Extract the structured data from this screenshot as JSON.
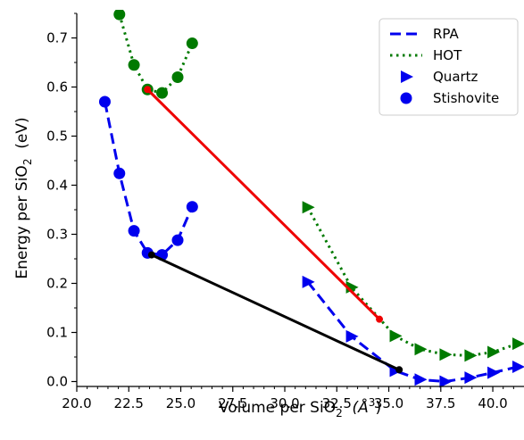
{
  "chart_data": {
    "type": "line",
    "xlabel": "Volume per SiO",
    "xlabel_sub": "2",
    "xlabel_unit": "(Å",
    "xlabel_unit_sup": "3",
    "xlabel_unit_close": ")",
    "ylabel": "Energy per SiO",
    "ylabel_sub": "2",
    "ylabel_unit": "(eV)",
    "xlim": [
      20.0,
      41.5
    ],
    "ylim": [
      -0.01,
      0.75
    ],
    "x_ticks": [
      "20.0",
      "22.5",
      "25.0",
      "27.5",
      "30.0",
      "32.5",
      "35.0",
      "37.5",
      "40.0"
    ],
    "y_ticks": [
      "0.0",
      "0.1",
      "0.2",
      "0.3",
      "0.4",
      "0.5",
      "0.6",
      "0.7"
    ],
    "legend": {
      "placement": "top-right",
      "entries": [
        "RPA",
        "HOT",
        "Quartz",
        "Stishovite"
      ]
    },
    "series": [
      {
        "name": "RPA",
        "curve": "dashed",
        "color": "#0000ee",
        "segments": [
          {
            "phase": "Stishovite",
            "marker": "circle",
            "points": [
              [
                21.35,
                0.57
              ],
              [
                22.05,
                0.424
              ],
              [
                22.75,
                0.307
              ],
              [
                23.4,
                0.262
              ],
              [
                24.1,
                0.258
              ],
              [
                24.85,
                0.288
              ],
              [
                25.55,
                0.356
              ]
            ]
          },
          {
            "phase": "Quartz",
            "marker": "triangle-right",
            "points": [
              [
                31.1,
                0.203
              ],
              [
                33.2,
                0.092
              ],
              [
                35.3,
                0.022
              ],
              [
                36.5,
                0.004
              ],
              [
                37.7,
                0.0
              ],
              [
                38.9,
                0.008
              ],
              [
                40.0,
                0.018
              ],
              [
                41.2,
                0.03
              ]
            ]
          }
        ]
      },
      {
        "name": "HOT",
        "curve": "dotted",
        "color": "#007a00",
        "segments": [
          {
            "phase": "Stishovite",
            "marker": "circle",
            "points": [
              [
                22.05,
                0.748
              ],
              [
                22.75,
                0.645
              ],
              [
                23.4,
                0.595
              ],
              [
                24.1,
                0.588
              ],
              [
                24.85,
                0.62
              ],
              [
                25.55,
                0.689
              ]
            ]
          },
          {
            "phase": "Quartz",
            "marker": "triangle-right",
            "points": [
              [
                31.1,
                0.355
              ],
              [
                33.2,
                0.192
              ],
              [
                35.3,
                0.093
              ],
              [
                36.5,
                0.066
              ],
              [
                37.7,
                0.055
              ],
              [
                38.9,
                0.053
              ],
              [
                40.0,
                0.06
              ],
              [
                41.2,
                0.077
              ]
            ]
          }
        ]
      }
    ],
    "tangent_lines": [
      {
        "color": "#ee0000",
        "from": [
          23.4,
          0.595
        ],
        "to": [
          34.55,
          0.127
        ]
      },
      {
        "color": "#000000",
        "from": [
          23.6,
          0.258
        ],
        "to": [
          35.5,
          0.024
        ]
      }
    ]
  }
}
